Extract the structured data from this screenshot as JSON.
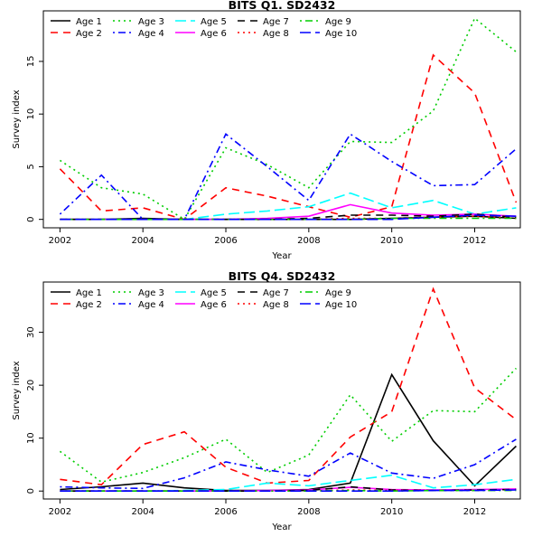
{
  "chart_data": [
    {
      "type": "line",
      "title": "BITS Q1. SD2432",
      "xlabel": "Year",
      "ylabel": "Survey index",
      "xlim": [
        2001.6,
        2013.1
      ],
      "ylim": [
        -0.8,
        19.8
      ],
      "xticks": [
        2002,
        2004,
        2006,
        2008,
        2010,
        2012
      ],
      "yticks": [
        0,
        5,
        10,
        15
      ],
      "grid": false,
      "legend_position": "top",
      "x": [
        2002,
        2003,
        2004,
        2005,
        2006,
        2007,
        2008,
        2009,
        2010,
        2011,
        2012,
        2013
      ],
      "series": [
        {
          "name": "Age 1",
          "color": "#000000",
          "dash": "solid",
          "values": [
            0.0,
            0.0,
            0.1,
            0.0,
            0.0,
            0.0,
            0.0,
            0.0,
            0.1,
            0.2,
            0.3,
            0.1
          ]
        },
        {
          "name": "Age 2",
          "color": "#ff0000",
          "dash": "dashed",
          "values": [
            4.8,
            0.8,
            1.1,
            0.0,
            3.0,
            2.2,
            1.2,
            0.2,
            1.2,
            15.6,
            12.0,
            1.6
          ]
        },
        {
          "name": "Age 3",
          "color": "#00cd00",
          "dash": "dotted",
          "values": [
            5.6,
            3.0,
            2.4,
            0.0,
            6.8,
            5.2,
            3.0,
            7.4,
            7.3,
            10.3,
            19.1,
            15.9
          ]
        },
        {
          "name": "Age 4",
          "color": "#0000ff",
          "dash": "dotdash",
          "values": [
            0.5,
            4.2,
            0.0,
            0.0,
            8.1,
            5.0,
            1.8,
            8.1,
            5.5,
            3.2,
            3.3,
            6.7
          ]
        },
        {
          "name": "Age 5",
          "color": "#00ffff",
          "dash": "longdash",
          "values": [
            0.0,
            0.0,
            0.0,
            0.0,
            0.5,
            0.8,
            1.2,
            2.5,
            1.1,
            1.8,
            0.5,
            1.1
          ]
        },
        {
          "name": "Age 6",
          "color": "#ff00ff",
          "dash": "solid",
          "values": [
            0.0,
            0.0,
            0.0,
            0.0,
            0.0,
            0.1,
            0.3,
            1.4,
            0.6,
            0.4,
            0.5,
            0.3
          ]
        },
        {
          "name": "Age 7",
          "color": "#000000",
          "dash": "dashed",
          "values": [
            0.0,
            0.0,
            0.0,
            0.0,
            0.0,
            0.0,
            0.1,
            0.4,
            0.4,
            0.3,
            0.5,
            0.2
          ]
        },
        {
          "name": "Age 8",
          "color": "#ff0000",
          "dash": "dotted",
          "values": [
            0.0,
            0.0,
            0.0,
            0.0,
            0.0,
            0.0,
            0.0,
            0.1,
            0.1,
            0.2,
            0.3,
            0.1
          ]
        },
        {
          "name": "Age 9",
          "color": "#00cd00",
          "dash": "dotdash",
          "values": [
            0.0,
            0.0,
            0.0,
            0.0,
            0.0,
            0.0,
            0.0,
            0.0,
            0.1,
            0.1,
            0.1,
            0.1
          ]
        },
        {
          "name": "Age 10",
          "color": "#0000ff",
          "dash": "longdash",
          "values": [
            0.0,
            0.0,
            0.0,
            0.0,
            0.0,
            0.0,
            0.0,
            0.0,
            0.0,
            0.2,
            0.4,
            0.3
          ]
        }
      ]
    },
    {
      "type": "line",
      "title": "BITS Q4. SD2432",
      "xlabel": "Year",
      "ylabel": "Survey index",
      "xlim": [
        2001.6,
        2013.1
      ],
      "ylim": [
        -1.5,
        39.5
      ],
      "xticks": [
        2002,
        2004,
        2006,
        2008,
        2010,
        2012
      ],
      "yticks": [
        0,
        10,
        20,
        30
      ],
      "grid": false,
      "legend_position": "top",
      "x": [
        2002,
        2003,
        2004,
        2005,
        2006,
        2007,
        2008,
        2009,
        2010,
        2011,
        2012,
        2013
      ],
      "series": [
        {
          "name": "Age 1",
          "color": "#000000",
          "dash": "solid",
          "values": [
            0.3,
            0.8,
            1.5,
            0.6,
            0.1,
            0.1,
            0.3,
            1.5,
            22.0,
            9.5,
            1.0,
            8.5
          ]
        },
        {
          "name": "Age 2",
          "color": "#ff0000",
          "dash": "dashed",
          "values": [
            2.2,
            1.2,
            8.8,
            11.2,
            4.5,
            1.5,
            2.0,
            10.2,
            15.0,
            38.2,
            19.5,
            13.5
          ]
        },
        {
          "name": "Age 3",
          "color": "#00cd00",
          "dash": "dotted",
          "values": [
            7.5,
            1.7,
            3.5,
            6.3,
            9.8,
            3.5,
            6.8,
            18.2,
            9.4,
            15.2,
            15.0,
            23.2
          ]
        },
        {
          "name": "Age 4",
          "color": "#0000ff",
          "dash": "dotdash",
          "values": [
            0.8,
            0.6,
            0.5,
            2.5,
            5.5,
            4.0,
            2.8,
            7.2,
            3.4,
            2.4,
            5.0,
            9.8
          ]
        },
        {
          "name": "Age 5",
          "color": "#00ffff",
          "dash": "longdash",
          "values": [
            0.0,
            0.0,
            0.0,
            0.1,
            0.3,
            1.5,
            1.0,
            2.0,
            3.0,
            0.6,
            1.2,
            2.2
          ]
        },
        {
          "name": "Age 6",
          "color": "#ff00ff",
          "dash": "solid",
          "values": [
            0.0,
            0.0,
            0.0,
            0.0,
            0.0,
            0.1,
            0.2,
            0.7,
            0.3,
            0.2,
            0.3,
            0.4
          ]
        },
        {
          "name": "Age 7",
          "color": "#000000",
          "dash": "dashed",
          "values": [
            0.0,
            0.0,
            0.0,
            0.0,
            0.0,
            0.0,
            0.1,
            0.8,
            0.2,
            0.1,
            0.2,
            0.3
          ]
        },
        {
          "name": "Age 8",
          "color": "#ff0000",
          "dash": "dotted",
          "values": [
            0.0,
            0.0,
            0.0,
            0.0,
            0.0,
            0.0,
            0.0,
            0.2,
            0.1,
            0.1,
            0.1,
            0.2
          ]
        },
        {
          "name": "Age 9",
          "color": "#00cd00",
          "dash": "dotdash",
          "values": [
            0.0,
            0.0,
            0.0,
            0.0,
            0.0,
            0.0,
            0.0,
            0.1,
            0.0,
            0.1,
            0.1,
            0.1
          ]
        },
        {
          "name": "Age 10",
          "color": "#0000ff",
          "dash": "longdash",
          "values": [
            0.0,
            0.0,
            0.0,
            0.0,
            0.0,
            0.0,
            0.0,
            0.0,
            0.0,
            0.1,
            0.1,
            0.2
          ]
        }
      ]
    }
  ]
}
